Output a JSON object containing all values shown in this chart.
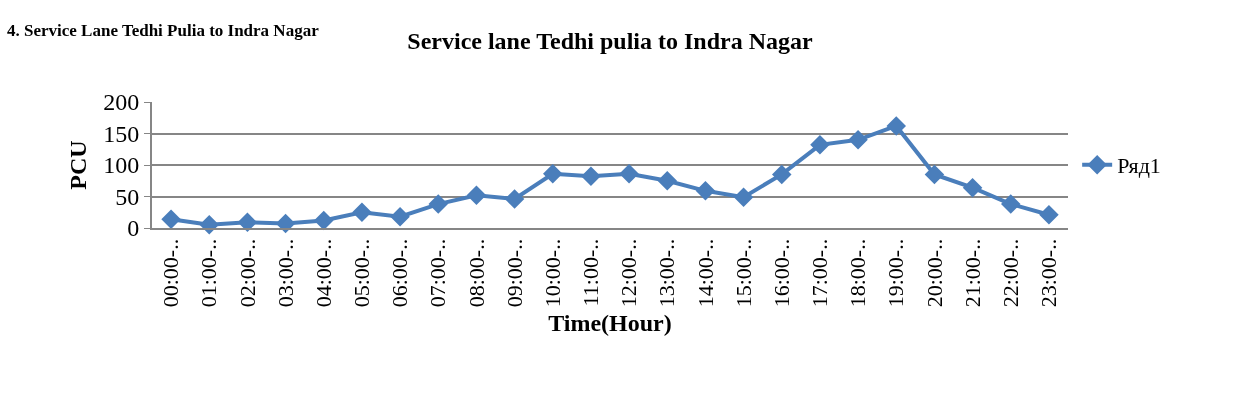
{
  "chart_data": {
    "type": "line",
    "title": "Service lane Tedhi pulia to Indra Nagar",
    "xlabel": "Time(Hour)",
    "ylabel": "PCU",
    "annotations": [
      "4. Service Lane Tedhi Pulia to Indra Nagar"
    ],
    "categories": [
      "00:00-..",
      "01:00-..",
      "02:00-..",
      "03:00-..",
      "04:00-..",
      "05:00-..",
      "06:00-..",
      "07:00-..",
      "08:00-..",
      "09:00-..",
      "10:00-..",
      "11:00-..",
      "12:00-..",
      "13:00-..",
      "14:00-..",
      "15:00-..",
      "16:00-..",
      "17:00-..",
      "18:00-..",
      "19:00-..",
      "20:00-..",
      "21:00-..",
      "22:00-..",
      "23:00-.."
    ],
    "series": [
      {
        "name": "Ряд1",
        "color": "#4a7ebb",
        "values": [
          14,
          5,
          9,
          7,
          12,
          25,
          18,
          38,
          52,
          46,
          86,
          82,
          86,
          75,
          59,
          49,
          85,
          132,
          140,
          162,
          85,
          64,
          38,
          21
        ]
      }
    ],
    "ylim": [
      0,
      200
    ],
    "yticks": [
      0,
      50,
      100,
      150,
      200
    ],
    "grid": "y",
    "legend": "right",
    "marker": "diamond",
    "line_style": "solid"
  }
}
